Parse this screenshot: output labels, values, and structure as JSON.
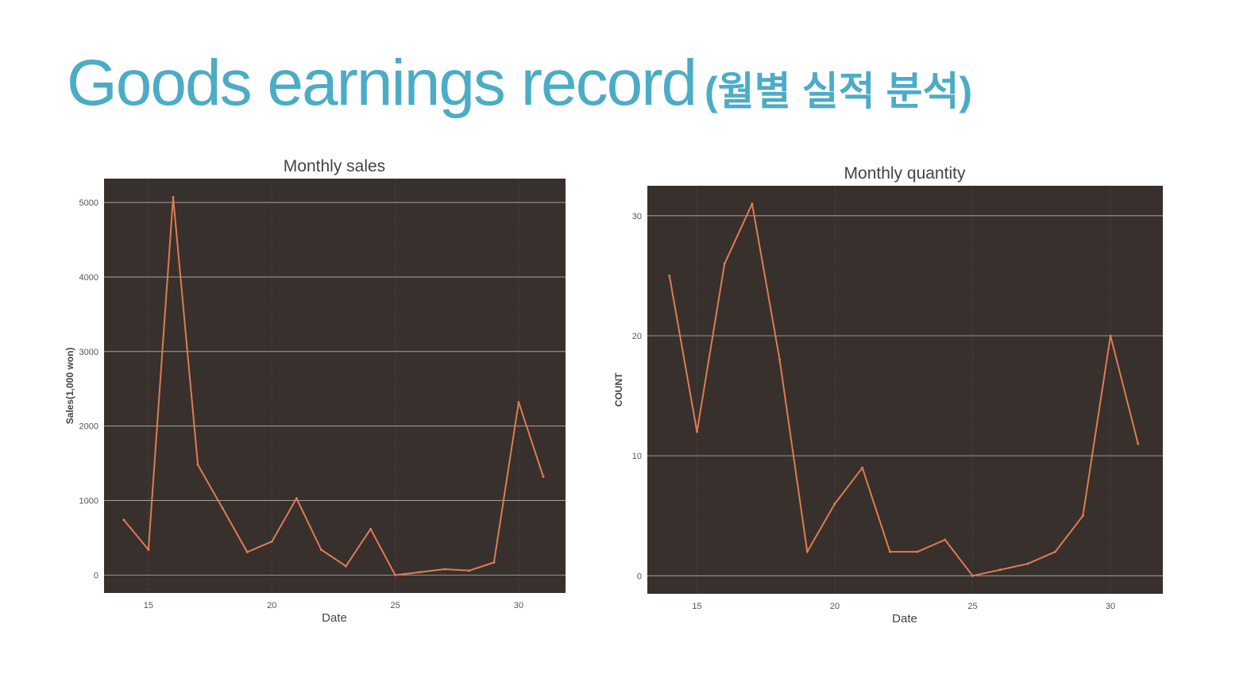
{
  "slide": {
    "title": "Goods earnings record",
    "subtitle": "(월별 실적 분석)",
    "colors": {
      "title": "#4bacc6",
      "panel": "#37302c",
      "line": "#e07b53",
      "grid": "#b9b3ad"
    }
  },
  "chart_data": [
    {
      "type": "line",
      "title": "Monthly sales",
      "xlabel": "Date",
      "ylabel": "Sales(1,000 won)",
      "xlim": [
        13.2,
        31.9
      ],
      "ylim": [
        -240,
        5320
      ],
      "x_ticks": [
        15,
        20,
        25,
        30
      ],
      "y_ticks": [
        0,
        1000,
        2000,
        3000,
        4000,
        5000
      ],
      "grid": true,
      "series": [
        {
          "x": [
            14,
            15,
            16,
            17,
            18,
            19,
            20,
            21,
            22,
            23,
            24,
            25,
            26,
            27,
            28,
            29,
            30,
            31
          ],
          "y": [
            740,
            340,
            5070,
            1480,
            900,
            310,
            450,
            1030,
            340,
            120,
            620,
            0,
            40,
            80,
            60,
            170,
            2320,
            1320
          ]
        }
      ]
    },
    {
      "type": "line",
      "title": "Monthly quantity",
      "xlabel": "Date",
      "ylabel": "COUNT",
      "xlim": [
        13.2,
        31.9
      ],
      "ylim": [
        -1.5,
        32.5
      ],
      "x_ticks": [
        15,
        20,
        25,
        30
      ],
      "y_ticks": [
        0,
        10,
        20,
        30
      ],
      "grid": true,
      "series": [
        {
          "x": [
            14,
            15,
            16,
            17,
            18,
            19,
            20,
            21,
            22,
            23,
            24,
            25,
            26,
            27,
            28,
            29,
            30,
            31
          ],
          "y": [
            25,
            12,
            26,
            31,
            18,
            2,
            6,
            9,
            2,
            2,
            3,
            0,
            0.5,
            1,
            2,
            5,
            20,
            11
          ]
        }
      ]
    }
  ]
}
